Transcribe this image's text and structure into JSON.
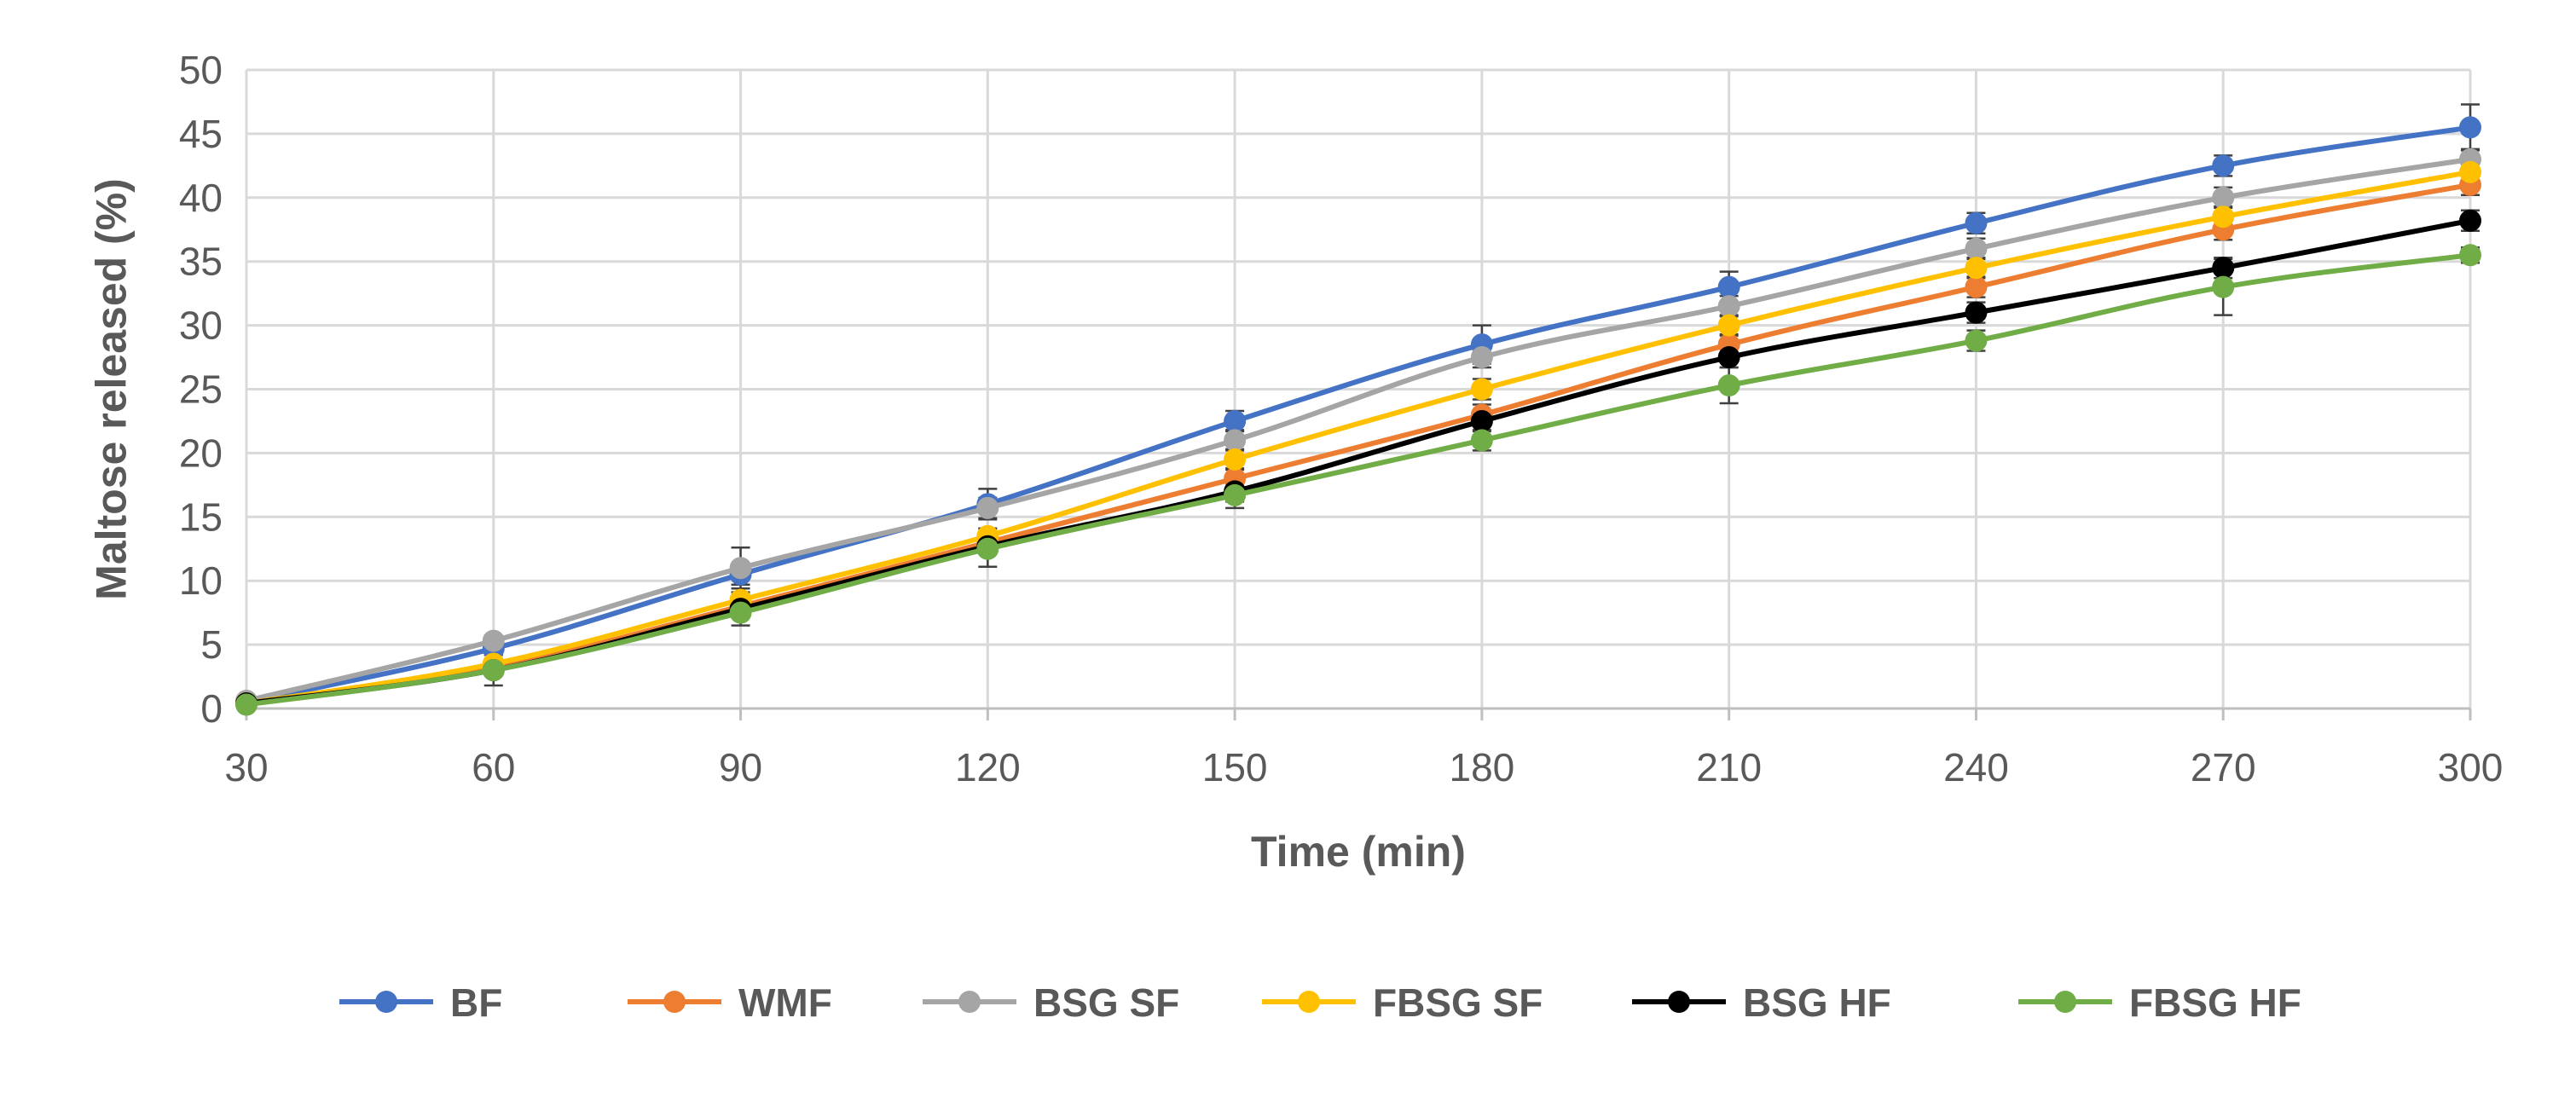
{
  "chart_data": {
    "type": "line",
    "title": "",
    "xlabel": "Time (min)",
    "ylabel": "Maltose released (%)",
    "x": [
      30,
      60,
      90,
      120,
      150,
      180,
      210,
      240,
      270,
      300
    ],
    "xlim": [
      30,
      300
    ],
    "ylim": [
      0,
      50
    ],
    "yticks": [
      0,
      5,
      10,
      15,
      20,
      25,
      30,
      35,
      40,
      45,
      50
    ],
    "grid": true,
    "legend_position": "bottom",
    "series": [
      {
        "name": "BF",
        "color": "#4472C4",
        "values": [
          0.5,
          4.7,
          10.5,
          16.0,
          22.5,
          28.5,
          33.0,
          38.0,
          42.5,
          45.5
        ],
        "errors": [
          0.3,
          0.5,
          0.8,
          1.2,
          0.8,
          1.5,
          1.2,
          0.8,
          0.8,
          1.8
        ]
      },
      {
        "name": "WMF",
        "color": "#ED7D31",
        "values": [
          0.4,
          3.2,
          8.0,
          13.0,
          18.0,
          23.0,
          28.5,
          33.0,
          37.5,
          41.0
        ],
        "errors": [
          0.2,
          0.4,
          0.6,
          0.8,
          0.8,
          0.8,
          0.8,
          0.8,
          0.8,
          0.8
        ]
      },
      {
        "name": "BSG SF",
        "color": "#A5A5A5",
        "values": [
          0.6,
          5.3,
          11.0,
          15.7,
          21.0,
          27.5,
          31.5,
          36.0,
          40.0,
          43.0
        ],
        "errors": [
          0.2,
          0.4,
          1.6,
          0.8,
          0.8,
          0.8,
          0.8,
          0.8,
          0.8,
          0.8
        ]
      },
      {
        "name": "FBSG SF",
        "color": "#FFC000",
        "values": [
          0.4,
          3.5,
          8.5,
          13.5,
          19.5,
          25.0,
          30.0,
          34.5,
          38.5,
          42.0
        ],
        "errors": [
          0.2,
          0.4,
          0.6,
          0.6,
          0.8,
          0.8,
          0.8,
          0.8,
          0.8,
          0.8
        ]
      },
      {
        "name": "BSG HF",
        "color": "#000000",
        "values": [
          0.4,
          3.0,
          7.8,
          12.7,
          17.0,
          22.5,
          27.5,
          31.0,
          34.5,
          38.2
        ],
        "errors": [
          0.2,
          0.4,
          0.6,
          0.6,
          0.8,
          0.8,
          0.8,
          0.8,
          0.8,
          0.8
        ]
      },
      {
        "name": "FBSG HF",
        "color": "#70AD47",
        "values": [
          0.3,
          3.0,
          7.5,
          12.5,
          16.7,
          21.0,
          25.3,
          28.8,
          33.0,
          35.5
        ],
        "errors": [
          0.2,
          1.2,
          1.0,
          1.4,
          1.0,
          0.8,
          1.4,
          0.8,
          2.2,
          0.6
        ]
      }
    ]
  }
}
